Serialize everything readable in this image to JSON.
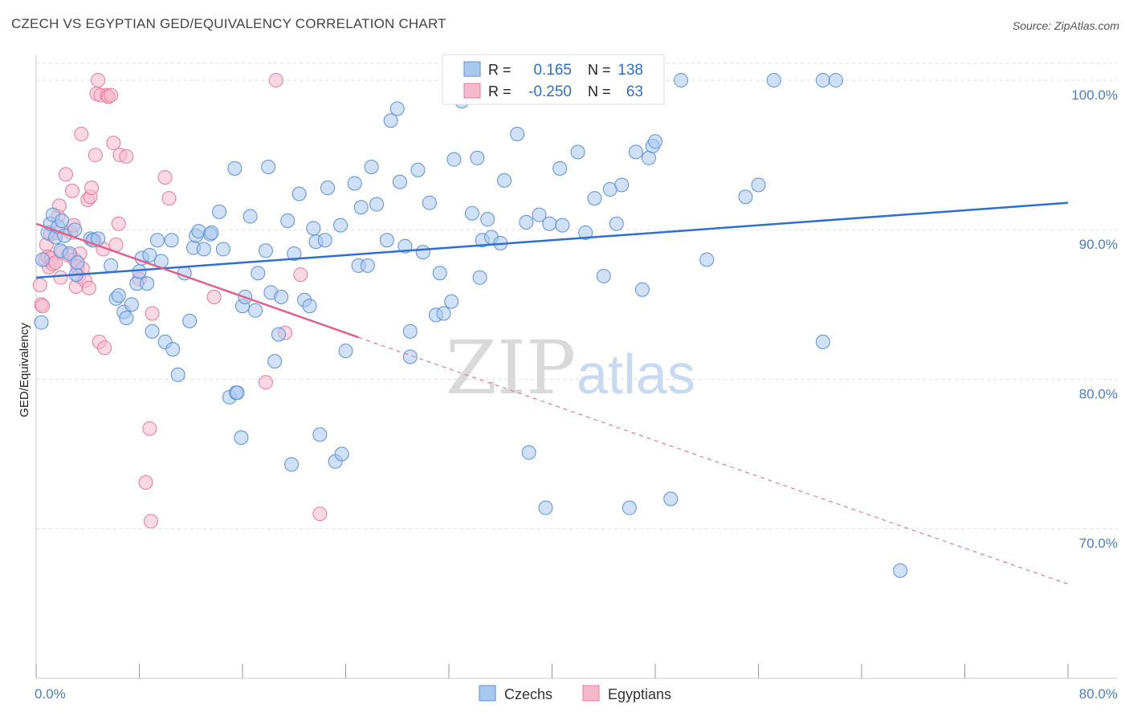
{
  "title": "CZECH VS EGYPTIAN GED/EQUIVALENCY CORRELATION CHART",
  "source": "Source: ZipAtlas.com",
  "watermark": {
    "zip": "ZIP",
    "atlas": "atlas"
  },
  "colors": {
    "czech_fill": "#a9c8f0",
    "czech_stroke": "#5b8fd8",
    "czech_line": "#2e6fd1",
    "egypt_fill": "#f6b9cc",
    "egypt_stroke": "#e8799e",
    "egypt_line": "#e0608a",
    "grid": "#dddddd",
    "axis_text": "#4a7dc8"
  },
  "legend": {
    "r_label": "R =",
    "n_label": "N =",
    "czech_r": "0.165",
    "czech_n": "138",
    "egypt_r": "-0.250",
    "egypt_n": "63"
  },
  "chart_data": {
    "type": "scatter",
    "title": "CZECH VS EGYPTIAN GED/EQUIVALENCY CORRELATION CHART",
    "xlabel": "",
    "ylabel": "GED/Equivalency",
    "xlim": [
      0,
      80
    ],
    "ylim": [
      60,
      101.5
    ],
    "x_tick_labels": [
      "0.0%",
      "80.0%"
    ],
    "y_ticks": [
      70,
      80,
      90,
      100
    ],
    "y_tick_labels": [
      "70.0%",
      "80.0%",
      "90.0%",
      "100.0%"
    ],
    "grid": true,
    "legend_position": "top-center",
    "series": [
      {
        "name": "Czechs",
        "r": 0.165,
        "n": 138,
        "trend": {
          "x": [
            0,
            80
          ],
          "y": [
            86.8,
            91.8
          ]
        },
        "points": [
          [
            0.4,
            83.8
          ],
          [
            0.5,
            88
          ],
          [
            0.9,
            89.8
          ],
          [
            1.1,
            90.4
          ],
          [
            1.3,
            91
          ],
          [
            1.5,
            89.5
          ],
          [
            1.7,
            90.2
          ],
          [
            1.9,
            88.6
          ],
          [
            2,
            90.6
          ],
          [
            2.2,
            89.6
          ],
          [
            2.6,
            88.4
          ],
          [
            3,
            90
          ],
          [
            3.1,
            87
          ],
          [
            3.2,
            87.8
          ],
          [
            4.2,
            89.4
          ],
          [
            4.4,
            89.3
          ],
          [
            4.8,
            89.4
          ],
          [
            5.8,
            87.6
          ],
          [
            6.2,
            85.4
          ],
          [
            6.4,
            85.6
          ],
          [
            6.8,
            84.5
          ],
          [
            7,
            84.1
          ],
          [
            7.4,
            85
          ],
          [
            7.8,
            86.4
          ],
          [
            8,
            87.2
          ],
          [
            8.2,
            88.1
          ],
          [
            8.6,
            86.4
          ],
          [
            8.8,
            88.3
          ],
          [
            9,
            83.2
          ],
          [
            9.4,
            89.3
          ],
          [
            9.7,
            87.9
          ],
          [
            10,
            82.5
          ],
          [
            10.5,
            89.3
          ],
          [
            10.6,
            82
          ],
          [
            11,
            80.3
          ],
          [
            11.5,
            87.1
          ],
          [
            11.9,
            83.9
          ],
          [
            12.2,
            88.8
          ],
          [
            12.4,
            89.6
          ],
          [
            12.6,
            89.9
          ],
          [
            13,
            88.7
          ],
          [
            13.5,
            89.7
          ],
          [
            13.6,
            89.8
          ],
          [
            14.2,
            91.2
          ],
          [
            14.5,
            88.7
          ],
          [
            15,
            78.8
          ],
          [
            15.4,
            94.1
          ],
          [
            15.5,
            79.1
          ],
          [
            15.6,
            79.1
          ],
          [
            15.9,
            76.1
          ],
          [
            16,
            84.9
          ],
          [
            16.2,
            85.5
          ],
          [
            16.6,
            90.9
          ],
          [
            17,
            84.6
          ],
          [
            17.2,
            87.1
          ],
          [
            17.8,
            88.6
          ],
          [
            18,
            94.2
          ],
          [
            18.2,
            85.8
          ],
          [
            18.5,
            81.2
          ],
          [
            18.8,
            83
          ],
          [
            19,
            85.5
          ],
          [
            19.5,
            90.6
          ],
          [
            19.8,
            74.3
          ],
          [
            20,
            88.4
          ],
          [
            20.4,
            92.4
          ],
          [
            20.8,
            85.3
          ],
          [
            21.2,
            84.9
          ],
          [
            21.5,
            90.1
          ],
          [
            21.7,
            89.2
          ],
          [
            22,
            76.3
          ],
          [
            22.4,
            89.3
          ],
          [
            22.6,
            92.8
          ],
          [
            23.2,
            74.5
          ],
          [
            23.6,
            90.3
          ],
          [
            23.7,
            75
          ],
          [
            24,
            81.9
          ],
          [
            24.7,
            93.1
          ],
          [
            25,
            87.6
          ],
          [
            25.2,
            91.5
          ],
          [
            25.7,
            87.6
          ],
          [
            26,
            94.2
          ],
          [
            26.4,
            91.7
          ],
          [
            27.2,
            89.3
          ],
          [
            27.5,
            97.3
          ],
          [
            28,
            98.1
          ],
          [
            28.2,
            93.2
          ],
          [
            28.6,
            88.9
          ],
          [
            29,
            81.5
          ],
          [
            29,
            83.2
          ],
          [
            29.6,
            94
          ],
          [
            30,
            88.5
          ],
          [
            30.5,
            91.8
          ],
          [
            31,
            84.3
          ],
          [
            31.3,
            87.1
          ],
          [
            31.6,
            84.4
          ],
          [
            32.2,
            85.2
          ],
          [
            32.4,
            94.7
          ],
          [
            33,
            98.6
          ],
          [
            33.8,
            91.1
          ],
          [
            34.2,
            94.8
          ],
          [
            34.4,
            86.8
          ],
          [
            34.6,
            89.3
          ],
          [
            35,
            90.7
          ],
          [
            35.3,
            89.5
          ],
          [
            36,
            89.1
          ],
          [
            36.3,
            93.3
          ],
          [
            37,
            100
          ],
          [
            37.3,
            96.4
          ],
          [
            38,
            90.5
          ],
          [
            38.2,
            75.1
          ],
          [
            39,
            91
          ],
          [
            39.5,
            71.4
          ],
          [
            39.8,
            90.4
          ],
          [
            40.6,
            94.1
          ],
          [
            40.8,
            90.3
          ],
          [
            42,
            95.2
          ],
          [
            42.6,
            89.8
          ],
          [
            43.3,
            92.1
          ],
          [
            44,
            86.9
          ],
          [
            44.5,
            92.7
          ],
          [
            45,
            90.4
          ],
          [
            45.4,
            93
          ],
          [
            46,
            71.4
          ],
          [
            46.5,
            95.2
          ],
          [
            47,
            86
          ],
          [
            47.5,
            94.8
          ],
          [
            47.8,
            95.6
          ],
          [
            48,
            95.9
          ],
          [
            49.2,
            72
          ],
          [
            50,
            100
          ],
          [
            52,
            88
          ],
          [
            55,
            92.2
          ],
          [
            56,
            93
          ],
          [
            57.2,
            100
          ],
          [
            61,
            100
          ],
          [
            61,
            82.5
          ],
          [
            62,
            100
          ],
          [
            67,
            67.2
          ]
        ]
      },
      {
        "name": "Egyptians",
        "r": -0.25,
        "n": 63,
        "trend": {
          "x": [
            0,
            25
          ],
          "y": [
            90.4,
            82.8
          ]
        },
        "trend_dashed": {
          "x": [
            25,
            80
          ],
          "y": [
            82.8,
            66.3
          ]
        },
        "points": [
          [
            0.3,
            86.3
          ],
          [
            0.4,
            85
          ],
          [
            0.5,
            84.9
          ],
          [
            0.7,
            88
          ],
          [
            0.8,
            89
          ],
          [
            0.9,
            88.2
          ],
          [
            1,
            87.5
          ],
          [
            1.1,
            89.7
          ],
          [
            1.2,
            88.1
          ],
          [
            1.3,
            87.7
          ],
          [
            1.5,
            87.8
          ],
          [
            1.6,
            89.8
          ],
          [
            1.7,
            90.9
          ],
          [
            1.8,
            91.6
          ],
          [
            1.9,
            86.8
          ],
          [
            2,
            88.5
          ],
          [
            2.3,
            93.7
          ],
          [
            2.5,
            88.3
          ],
          [
            2.7,
            89.8
          ],
          [
            2.8,
            92.6
          ],
          [
            2.9,
            90.3
          ],
          [
            3,
            88
          ],
          [
            3.1,
            86.2
          ],
          [
            3.2,
            87.5
          ],
          [
            3.3,
            86.9
          ],
          [
            3.4,
            88.4
          ],
          [
            3.5,
            96.4
          ],
          [
            3.6,
            87.4
          ],
          [
            3.8,
            86.6
          ],
          [
            4,
            92
          ],
          [
            4.1,
            86.1
          ],
          [
            4.2,
            92.2
          ],
          [
            4.3,
            92.8
          ],
          [
            4.5,
            89.3
          ],
          [
            4.6,
            95
          ],
          [
            4.7,
            99.1
          ],
          [
            4.8,
            100
          ],
          [
            4.9,
            82.5
          ],
          [
            5,
            99
          ],
          [
            5.2,
            88.7
          ],
          [
            5.3,
            82.1
          ],
          [
            5.5,
            99
          ],
          [
            5.6,
            98.9
          ],
          [
            5.8,
            99
          ],
          [
            6,
            95.8
          ],
          [
            6.2,
            89
          ],
          [
            6.4,
            90.4
          ],
          [
            6.5,
            95
          ],
          [
            7,
            94.9
          ],
          [
            8,
            86.7
          ],
          [
            8.5,
            73.1
          ],
          [
            8.8,
            76.7
          ],
          [
            8.9,
            70.5
          ],
          [
            9,
            84.4
          ],
          [
            10,
            93.5
          ],
          [
            10.3,
            92.1
          ],
          [
            13.8,
            85.5
          ],
          [
            17.8,
            79.8
          ],
          [
            18.6,
            100
          ],
          [
            19.3,
            83.1
          ],
          [
            20.5,
            87
          ],
          [
            22,
            71
          ]
        ]
      }
    ]
  },
  "bottom_legend": [
    {
      "label": "Czechs"
    },
    {
      "label": "Egyptians"
    }
  ]
}
